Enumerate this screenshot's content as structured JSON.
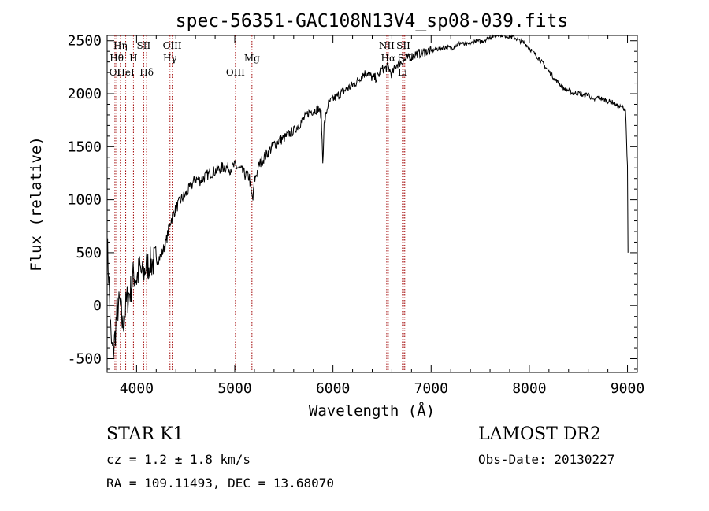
{
  "chart_data": {
    "type": "line",
    "title": "spec-56351-GAC108N13V4_sp08-039.fits",
    "xlabel": "Wavelength (Å)",
    "ylabel": "Flux (relative)",
    "xlim": [
      3700,
      9100
    ],
    "ylim": [
      -630,
      2550
    ],
    "xticks": [
      4000,
      5000,
      6000,
      7000,
      8000,
      9000
    ],
    "yticks": [
      -500,
      0,
      500,
      1000,
      1500,
      2000,
      2500
    ],
    "spectrum": {
      "x": [
        3700,
        3720,
        3740,
        3760,
        3780,
        3800,
        3830,
        3860,
        3900,
        3940,
        3970,
        4000,
        4030,
        4060,
        4100,
        4150,
        4200,
        4250,
        4300,
        4340,
        4380,
        4420,
        4450,
        4500,
        4550,
        4600,
        4650,
        4700,
        4750,
        4800,
        4860,
        4900,
        4950,
        5000,
        5050,
        5100,
        5150,
        5170,
        5185,
        5200,
        5250,
        5300,
        5350,
        5400,
        5450,
        5500,
        5550,
        5600,
        5650,
        5700,
        5750,
        5800,
        5850,
        5880,
        5890,
        5896,
        5910,
        5950,
        6000,
        6050,
        6100,
        6150,
        6200,
        6250,
        6300,
        6350,
        6400,
        6450,
        6500,
        6563,
        6600,
        6650,
        6700,
        6750,
        6800,
        6850,
        6900,
        6950,
        7000,
        7050,
        7100,
        7150,
        7200,
        7250,
        7300,
        7350,
        7400,
        7450,
        7500,
        7550,
        7600,
        7650,
        7700,
        7750,
        7800,
        7850,
        7900,
        7950,
        8000,
        8050,
        8100,
        8150,
        8200,
        8250,
        8300,
        8350,
        8400,
        8450,
        8500,
        8550,
        8600,
        8650,
        8700,
        8750,
        8800,
        8850,
        8900,
        8950,
        8980,
        9000,
        9005
      ],
      "y": [
        600,
        200,
        -350,
        -450,
        -300,
        -50,
        20,
        -200,
        50,
        150,
        300,
        250,
        350,
        280,
        380,
        400,
        430,
        470,
        600,
        780,
        880,
        950,
        1000,
        1050,
        1120,
        1200,
        1180,
        1220,
        1250,
        1270,
        1300,
        1310,
        1290,
        1320,
        1290,
        1240,
        1210,
        1050,
        1000,
        1180,
        1330,
        1400,
        1460,
        1520,
        1560,
        1580,
        1620,
        1650,
        1700,
        1760,
        1820,
        1840,
        1860,
        1800,
        1550,
        1350,
        1700,
        1900,
        1950,
        1980,
        2020,
        2050,
        2080,
        2120,
        2180,
        2200,
        2150,
        2150,
        2230,
        2250,
        2180,
        2280,
        2300,
        2330,
        2350,
        2380,
        2380,
        2400,
        2400,
        2420,
        2430,
        2440,
        2430,
        2450,
        2480,
        2460,
        2470,
        2500,
        2490,
        2510,
        2530,
        2550,
        2560,
        2550,
        2540,
        2530,
        2500,
        2480,
        2430,
        2380,
        2330,
        2270,
        2210,
        2150,
        2100,
        2050,
        2030,
        2000,
        2010,
        1980,
        2000,
        1930,
        1970,
        1950,
        1930,
        1920,
        1880,
        1870,
        1850,
        1300,
        500
      ]
    },
    "lines": [
      {
        "name": "OI",
        "x": 3780,
        "row": 3
      },
      {
        "name": "Hη",
        "x": 3835,
        "row": 1
      },
      {
        "name": "Hθ",
        "x": 3797,
        "row": 2
      },
      {
        "name": "HeI",
        "x": 3889,
        "row": 3
      },
      {
        "name": "H",
        "x": 3968,
        "row": 2
      },
      {
        "name": "SII",
        "x": 4072,
        "row": 1
      },
      {
        "name": "Hδ",
        "x": 4102,
        "row": 3
      },
      {
        "name": "OIII",
        "x": 4363,
        "row": 1
      },
      {
        "name": "Hγ",
        "x": 4340,
        "row": 2
      },
      {
        "name": "OIII",
        "x": 5007,
        "row": 3
      },
      {
        "name": "Mg",
        "x": 5175,
        "row": 2
      },
      {
        "name": "NII",
        "x": 6548,
        "row": 1
      },
      {
        "name": "SII",
        "x": 6717,
        "row": 1
      },
      {
        "name": "Hα",
        "x": 6563,
        "row": 2
      },
      {
        "name": "SII",
        "x": 6731,
        "row": 2
      },
      {
        "name": "Li",
        "x": 6708,
        "row": 3
      }
    ]
  },
  "info": {
    "class": "STAR    K1",
    "survey": "LAMOST DR2",
    "cz": "cz = 1.2 ± 1.8 km/s",
    "obs_date": "Obs-Date: 20130227",
    "radec": "RA = 109.11493, DEC =  13.68070"
  }
}
